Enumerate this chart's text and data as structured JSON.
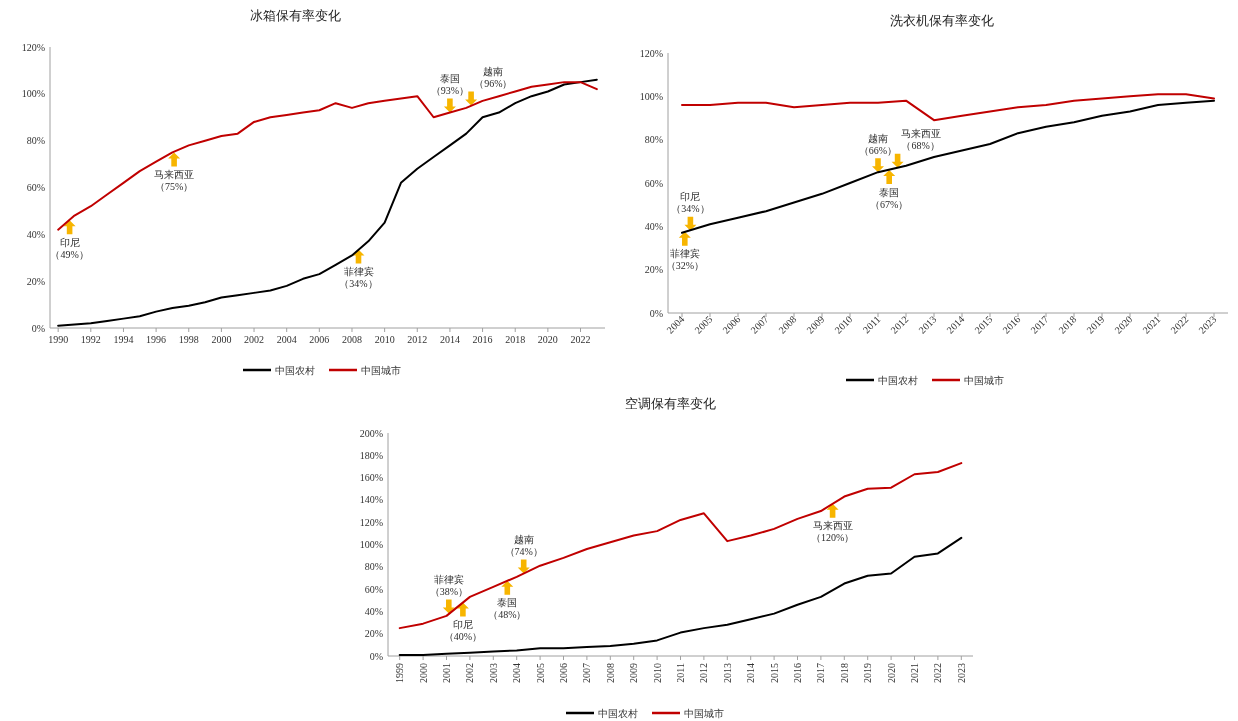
{
  "chart_data": [
    {
      "type": "line",
      "title": "冰箱保有率变化",
      "x": [
        1990,
        1991,
        1992,
        1993,
        1994,
        1995,
        1996,
        1997,
        1998,
        1999,
        2000,
        2001,
        2002,
        2003,
        2004,
        2005,
        2006,
        2007,
        2008,
        2009,
        2010,
        2011,
        2012,
        2013,
        2014,
        2015,
        2016,
        2017,
        2018,
        2019,
        2020,
        2021,
        2022,
        2023
      ],
      "xlim": [
        1989.5,
        2023.5
      ],
      "xticks": [
        1990,
        1992,
        1994,
        1996,
        1998,
        2000,
        2002,
        2004,
        2006,
        2008,
        2010,
        2012,
        2014,
        2016,
        2018,
        2020,
        2022
      ],
      "ylim": [
        0,
        120
      ],
      "yticks": [
        {
          "value": 0,
          "label": "0%"
        },
        {
          "value": 20,
          "label": "20%"
        },
        {
          "value": 40,
          "label": "40%"
        },
        {
          "value": 60,
          "label": "60%"
        },
        {
          "value": 80,
          "label": "80%"
        },
        {
          "value": 100,
          "label": "100%"
        },
        {
          "value": 120,
          "label": "120%"
        }
      ],
      "series": [
        {
          "name": "中国农村",
          "color": "#000000",
          "values": [
            1,
            1.5,
            2,
            3,
            4,
            5,
            7,
            8.5,
            9.5,
            11,
            13,
            14,
            15,
            16,
            18,
            21,
            23,
            27,
            31,
            37,
            45,
            62,
            68,
            73,
            78,
            83,
            90,
            92,
            96,
            99,
            101,
            104,
            105,
            106
          ]
        },
        {
          "name": "中国城市",
          "color": "#c00000",
          "values": [
            42,
            48,
            52,
            57,
            62,
            67,
            71,
            75,
            78,
            80,
            82,
            83,
            88,
            90,
            91,
            92,
            93,
            96,
            94,
            96,
            97,
            98,
            99,
            90,
            92,
            94,
            97,
            99,
            101,
            103,
            104,
            105,
            105,
            102
          ]
        }
      ],
      "legend": "bottom",
      "annotations": [
        {
          "text": "印尼（49%）",
          "x": 1990.7,
          "y": 46
        },
        {
          "text": "马来西亚（75%）",
          "x": 1997.1,
          "y": 75
        },
        {
          "text": "菲律宾（34%）",
          "x": 2008.4,
          "y": 33.5
        },
        {
          "text": "泰国（93%）",
          "x": 2014.0,
          "y": 92
        },
        {
          "text": "越南（96%）",
          "x": 2015.3,
          "y": 95
        }
      ]
    },
    {
      "type": "line",
      "title": "洗衣机保有率变化",
      "x": [
        2004,
        2005,
        2006,
        2007,
        2008,
        2009,
        2010,
        2011,
        2012,
        2013,
        2014,
        2015,
        2016,
        2017,
        2018,
        2019,
        2020,
        2021,
        2022,
        2023
      ],
      "xlim": [
        2003.5,
        2023.5
      ],
      "xticks": [
        2004,
        2005,
        2006,
        2007,
        2008,
        2009,
        2010,
        2011,
        2012,
        2013,
        2014,
        2015,
        2016,
        2017,
        2018,
        2019,
        2020,
        2021,
        2022,
        2023
      ],
      "ylim": [
        0,
        120
      ],
      "yticks": [
        {
          "value": 0,
          "label": "0%"
        },
        {
          "value": 20,
          "label": "20%"
        },
        {
          "value": 40,
          "label": "40%"
        },
        {
          "value": 60,
          "label": "60%"
        },
        {
          "value": 80,
          "label": "80%"
        },
        {
          "value": 100,
          "label": "100%"
        },
        {
          "value": 120,
          "label": "120%"
        }
      ],
      "series": [
        {
          "name": "中国农村",
          "color": "#000000",
          "values": [
            37,
            41,
            44,
            47,
            51,
            55,
            60,
            65,
            68,
            72,
            75,
            78,
            83,
            86,
            88,
            91,
            93,
            96,
            97,
            98
          ]
        },
        {
          "name": "中国城市",
          "color": "#c00000",
          "values": [
            96,
            96,
            97,
            97,
            95,
            96,
            97,
            97,
            98,
            89,
            91,
            93,
            95,
            96,
            98,
            99,
            100,
            101,
            101,
            99
          ]
        }
      ],
      "legend": "bottom",
      "annotations": [
        {
          "text": "菲律宾（32%）",
          "x": 2004.1,
          "y": 37.5
        },
        {
          "text": "印尼（34%）",
          "x": 2004.3,
          "y": 38
        },
        {
          "text": "泰国（67%）",
          "x": 2011.4,
          "y": 66
        },
        {
          "text": "越南（66%）",
          "x": 2011.0,
          "y": 65
        },
        {
          "text": "马来西亚（68%）",
          "x": 2011.7,
          "y": 67
        }
      ]
    },
    {
      "type": "line",
      "title": "空调保有率变化",
      "x": [
        1999,
        2000,
        2001,
        2002,
        2003,
        2004,
        2005,
        2006,
        2007,
        2008,
        2009,
        2010,
        2011,
        2012,
        2013,
        2014,
        2015,
        2016,
        2017,
        2018,
        2019,
        2020,
        2021,
        2022,
        2023
      ],
      "xlim": [
        1998.5,
        2023.5
      ],
      "xticks": [
        1999,
        2000,
        2001,
        2002,
        2003,
        2004,
        2005,
        2006,
        2007,
        2008,
        2009,
        2010,
        2011,
        2012,
        2013,
        2014,
        2015,
        2016,
        2017,
        2018,
        2019,
        2020,
        2021,
        2022,
        2023
      ],
      "ylim": [
        0,
        200
      ],
      "yticks": [
        {
          "value": 0,
          "label": "0%"
        },
        {
          "value": 20,
          "label": "20%"
        },
        {
          "value": 40,
          "label": "40%"
        },
        {
          "value": 60,
          "label": "60%"
        },
        {
          "value": 80,
          "label": "80%"
        },
        {
          "value": 100,
          "label": "100%"
        },
        {
          "value": 120,
          "label": "120%"
        },
        {
          "value": 140,
          "label": "140%"
        },
        {
          "value": 160,
          "label": "160%"
        },
        {
          "value": 180,
          "label": "180%"
        },
        {
          "value": 200,
          "label": "200%"
        }
      ],
      "series": [
        {
          "name": "中国农村",
          "color": "#000000",
          "values": [
            1,
            1,
            2,
            3,
            4,
            5,
            7,
            7,
            8,
            9,
            11,
            14,
            21,
            25,
            28,
            33,
            38,
            46,
            53,
            65,
            72,
            74,
            89,
            92,
            106
          ]
        },
        {
          "name": "中国城市",
          "color": "#c00000",
          "values": [
            25,
            29,
            36,
            53,
            62,
            71,
            81,
            88,
            96,
            102,
            108,
            112,
            122,
            128,
            103,
            108,
            114,
            123,
            130,
            143,
            150,
            151,
            163,
            165,
            173
          ]
        }
      ],
      "legend": "bottom",
      "annotations": [
        {
          "text": "印尼（40%）",
          "x": 2001.7,
          "y": 48
        },
        {
          "text": "菲律宾（38%）",
          "x": 2001.1,
          "y": 38
        },
        {
          "text": "泰国（48%）",
          "x": 2003.6,
          "y": 67.5
        },
        {
          "text": "越南（74%）",
          "x": 2004.3,
          "y": 74
        },
        {
          "text": "马来西亚（120%）",
          "x": 2017.5,
          "y": 136.5
        }
      ]
    }
  ]
}
